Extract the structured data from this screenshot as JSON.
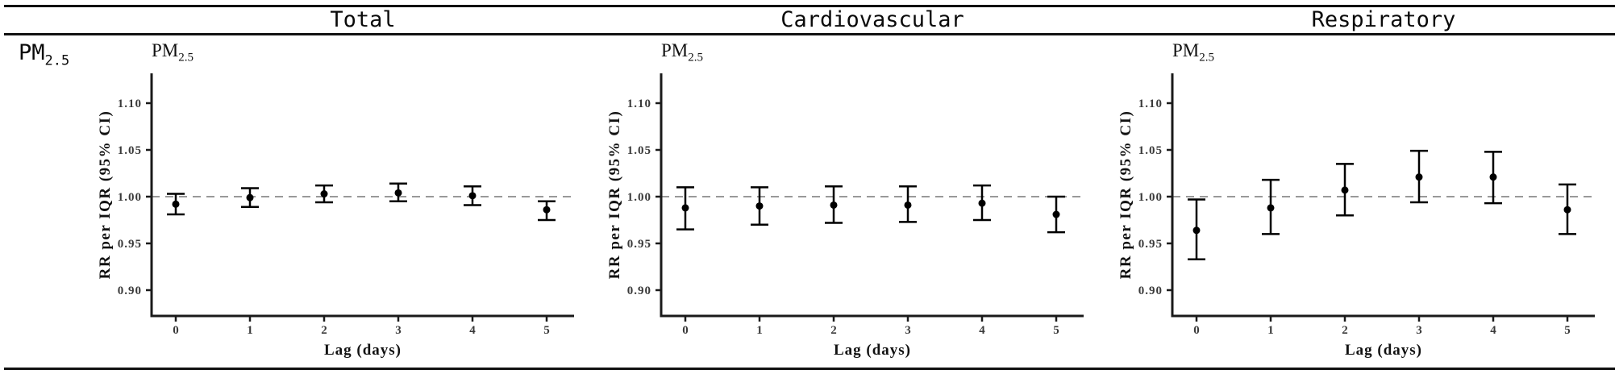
{
  "table": {
    "columns": [
      "Total",
      "Cardiovascular",
      "Respiratory"
    ],
    "row_label": {
      "main": "PM",
      "sub": "2.5"
    }
  },
  "colors": {
    "axis": "#1a1a1a",
    "point": "#000000",
    "reference_line": "#999999",
    "tick_label": "#3a3a3a",
    "rule": "#111111"
  },
  "chart_data": [
    {
      "type": "scatter",
      "outcome": "Total",
      "title_main": "PM",
      "title_sub": "2.5",
      "xlabel": "Lag (days)",
      "ylabel": "RR per IQR (95% CI)",
      "x": [
        0,
        1,
        2,
        3,
        4,
        5
      ],
      "xtick_labels": [
        "0",
        "1",
        "2",
        "3",
        "4",
        "5"
      ],
      "yticks": [
        0.9,
        0.95,
        1.0,
        1.05,
        1.1
      ],
      "ytick_labels": [
        "0.90",
        "0.95",
        "1.00",
        "1.05",
        "1.10"
      ],
      "ylim": [
        0.872,
        1.132
      ],
      "reference_line": 1.0,
      "grid": false,
      "legend": false,
      "series": [
        {
          "name": "RR per IQR",
          "values": [
            0.992,
            0.999,
            1.003,
            1.004,
            1.001,
            0.986
          ],
          "ci_low": [
            0.981,
            0.989,
            0.994,
            0.995,
            0.991,
            0.975
          ],
          "ci_high": [
            1.003,
            1.009,
            1.012,
            1.014,
            1.011,
            0.995
          ]
        }
      ]
    },
    {
      "type": "scatter",
      "outcome": "Cardiovascular",
      "title_main": "PM",
      "title_sub": "2.5",
      "xlabel": "Lag (days)",
      "ylabel": "RR per IQR (95% CI)",
      "x": [
        0,
        1,
        2,
        3,
        4,
        5
      ],
      "xtick_labels": [
        "0",
        "1",
        "2",
        "3",
        "4",
        "5"
      ],
      "yticks": [
        0.9,
        0.95,
        1.0,
        1.05,
        1.1
      ],
      "ytick_labels": [
        "0.90",
        "0.95",
        "1.00",
        "1.05",
        "1.10"
      ],
      "ylim": [
        0.872,
        1.132
      ],
      "reference_line": 1.0,
      "grid": false,
      "legend": false,
      "series": [
        {
          "name": "RR per IQR",
          "values": [
            0.988,
            0.99,
            0.991,
            0.991,
            0.993,
            0.981
          ],
          "ci_low": [
            0.965,
            0.97,
            0.972,
            0.973,
            0.975,
            0.962
          ],
          "ci_high": [
            1.01,
            1.01,
            1.011,
            1.011,
            1.012,
            1.0
          ]
        }
      ]
    },
    {
      "type": "scatter",
      "outcome": "Respiratory",
      "title_main": "PM",
      "title_sub": "2.5",
      "xlabel": "Lag (days)",
      "ylabel": "RR per IQR (95% CI)",
      "x": [
        0,
        1,
        2,
        3,
        4,
        5
      ],
      "xtick_labels": [
        "0",
        "1",
        "2",
        "3",
        "4",
        "5"
      ],
      "yticks": [
        0.9,
        0.95,
        1.0,
        1.05,
        1.1
      ],
      "ytick_labels": [
        "0.90",
        "0.95",
        "1.00",
        "1.05",
        "1.10"
      ],
      "ylim": [
        0.872,
        1.132
      ],
      "reference_line": 1.0,
      "grid": false,
      "legend": false,
      "series": [
        {
          "name": "RR per IQR",
          "values": [
            0.964,
            0.988,
            1.007,
            1.021,
            1.021,
            0.986
          ],
          "ci_low": [
            0.933,
            0.96,
            0.98,
            0.994,
            0.993,
            0.96
          ],
          "ci_high": [
            0.997,
            1.018,
            1.035,
            1.049,
            1.048,
            1.013
          ]
        }
      ]
    }
  ]
}
